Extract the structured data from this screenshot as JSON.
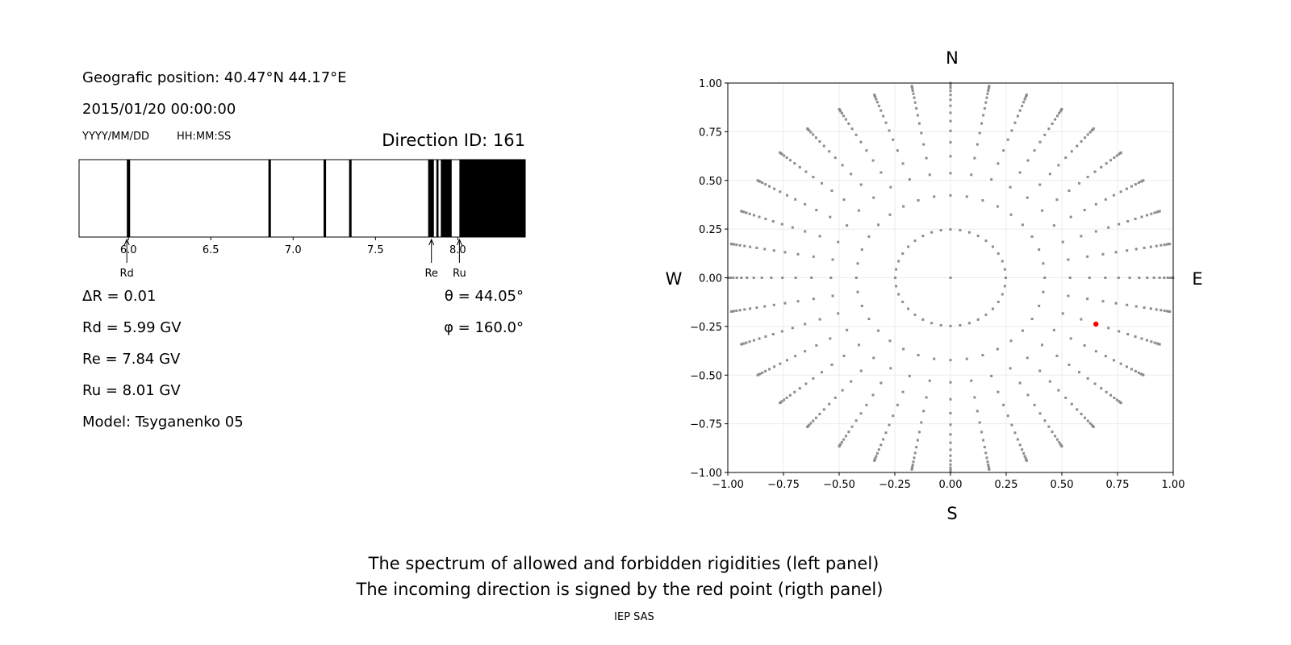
{
  "left_panel": {
    "position": "Geografic position: 40.47°N 44.17°E",
    "datetime": "2015/01/20 00:00:00",
    "date_format": "YYYY/MM/DD",
    "time_format": "HH:MM:SS",
    "direction_id": "Direction ID: 161",
    "delta_r": "ΔR = 0.01",
    "theta": "θ = 44.05°",
    "phi": "φ = 160.0°",
    "rd": "Rd = 5.99 GV",
    "re": "Re = 7.84 GV",
    "ru": "Ru = 8.01 GV",
    "model": "Model: Tsyganenko 05"
  },
  "caption": {
    "line1": "The spectrum of allowed and forbidden rigidities (left panel)",
    "line2": "The incoming direction is signed by the red point (rigth panel)",
    "credit": "IEP SAS"
  },
  "chart_data": [
    {
      "type": "bar",
      "description_kind": "rigidity spectrum (black = forbidden, white = allowed)",
      "xlim": [
        5.7,
        8.41
      ],
      "xticks": [
        "6.0",
        "6.5",
        "7.0",
        "7.5",
        "8.0"
      ],
      "xtick_values": [
        6.0,
        6.5,
        7.0,
        7.5,
        8.0
      ],
      "forbidden_intervals": [
        [
          5.99,
          6.01
        ],
        [
          6.85,
          6.865
        ],
        [
          7.185,
          7.2
        ],
        [
          7.34,
          7.355
        ],
        [
          7.82,
          7.855
        ],
        [
          7.87,
          7.883
        ],
        [
          7.897,
          7.963
        ],
        [
          8.01,
          8.41
        ]
      ],
      "markers": [
        {
          "label": "Rd",
          "value": 5.99
        },
        {
          "label": "Re",
          "value": 7.84
        },
        {
          "label": "Ru",
          "value": 8.01
        }
      ],
      "colors": {
        "forbidden": "#000000",
        "allowed": "#ffffff"
      }
    },
    {
      "type": "scatter",
      "xlim": [
        -1,
        1
      ],
      "ylim": [
        -1,
        1
      ],
      "grid": true,
      "ticks": [
        "−1.00",
        "−0.75",
        "−0.50",
        "−0.25",
        "0.00",
        "0.25",
        "0.50",
        "0.75",
        "1.00"
      ],
      "tick_values": [
        -1,
        -0.75,
        -0.5,
        -0.25,
        0,
        0.25,
        0.5,
        0.75,
        1
      ],
      "compass": {
        "north": "N",
        "south": "S",
        "west": "W",
        "east": "E"
      },
      "center_point": [
        0,
        0
      ],
      "ring_theta_deg": [
        14.36,
        25.02,
        32.48,
        38.62,
        44.05,
        48.99,
        53.58,
        57.91,
        62.05,
        66.03,
        69.89,
        73.67,
        77.36,
        81.01,
        84.62,
        88.21
      ],
      "phi_deg": [
        0,
        10,
        20,
        30,
        40,
        50,
        60,
        70,
        80,
        90,
        100,
        110,
        120,
        130,
        140,
        150,
        160,
        170,
        180,
        190,
        200,
        210,
        220,
        230,
        240,
        250,
        260,
        270,
        280,
        290,
        300,
        310,
        320,
        330,
        340,
        350
      ],
      "highlight": {
        "theta_deg": 44.05,
        "phi_deg": 160.0,
        "x": 0.653,
        "y": -0.238
      },
      "colors": {
        "points": "#8c8c8c",
        "highlight": "#ff0000",
        "grid": "#ebebeb"
      }
    }
  ]
}
